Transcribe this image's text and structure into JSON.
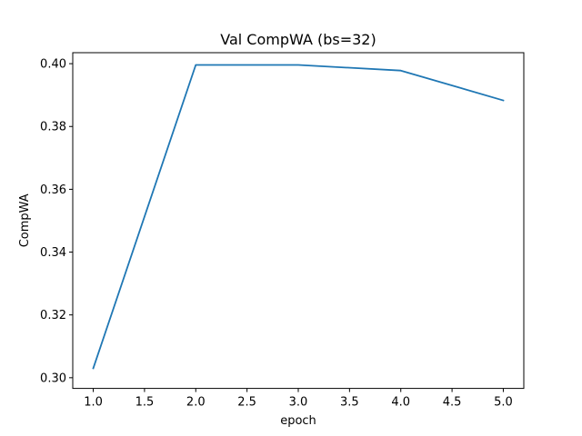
{
  "chart_data": {
    "type": "line",
    "title": "Val CompWA (bs=32)",
    "xlabel": "epoch",
    "ylabel": "CompWA",
    "xlim": [
      0.8,
      5.2
    ],
    "ylim": [
      0.2966,
      0.4035
    ],
    "xticks": [
      1.0,
      1.5,
      2.0,
      2.5,
      3.0,
      3.5,
      4.0,
      4.5,
      5.0
    ],
    "xtick_labels": [
      "1.0",
      "1.5",
      "2.0",
      "2.5",
      "3.0",
      "3.5",
      "4.0",
      "4.5",
      "5.0"
    ],
    "yticks": [
      0.3,
      0.32,
      0.34,
      0.36,
      0.38,
      0.4
    ],
    "ytick_labels": [
      "0.30",
      "0.32",
      "0.34",
      "0.36",
      "0.38",
      "0.40"
    ],
    "grid": false,
    "series": [
      {
        "color": "#1f77b4",
        "x": [
          1,
          2,
          3,
          4,
          5
        ],
        "y": [
          0.303,
          0.3996,
          0.3996,
          0.3978,
          0.3883
        ]
      }
    ]
  }
}
